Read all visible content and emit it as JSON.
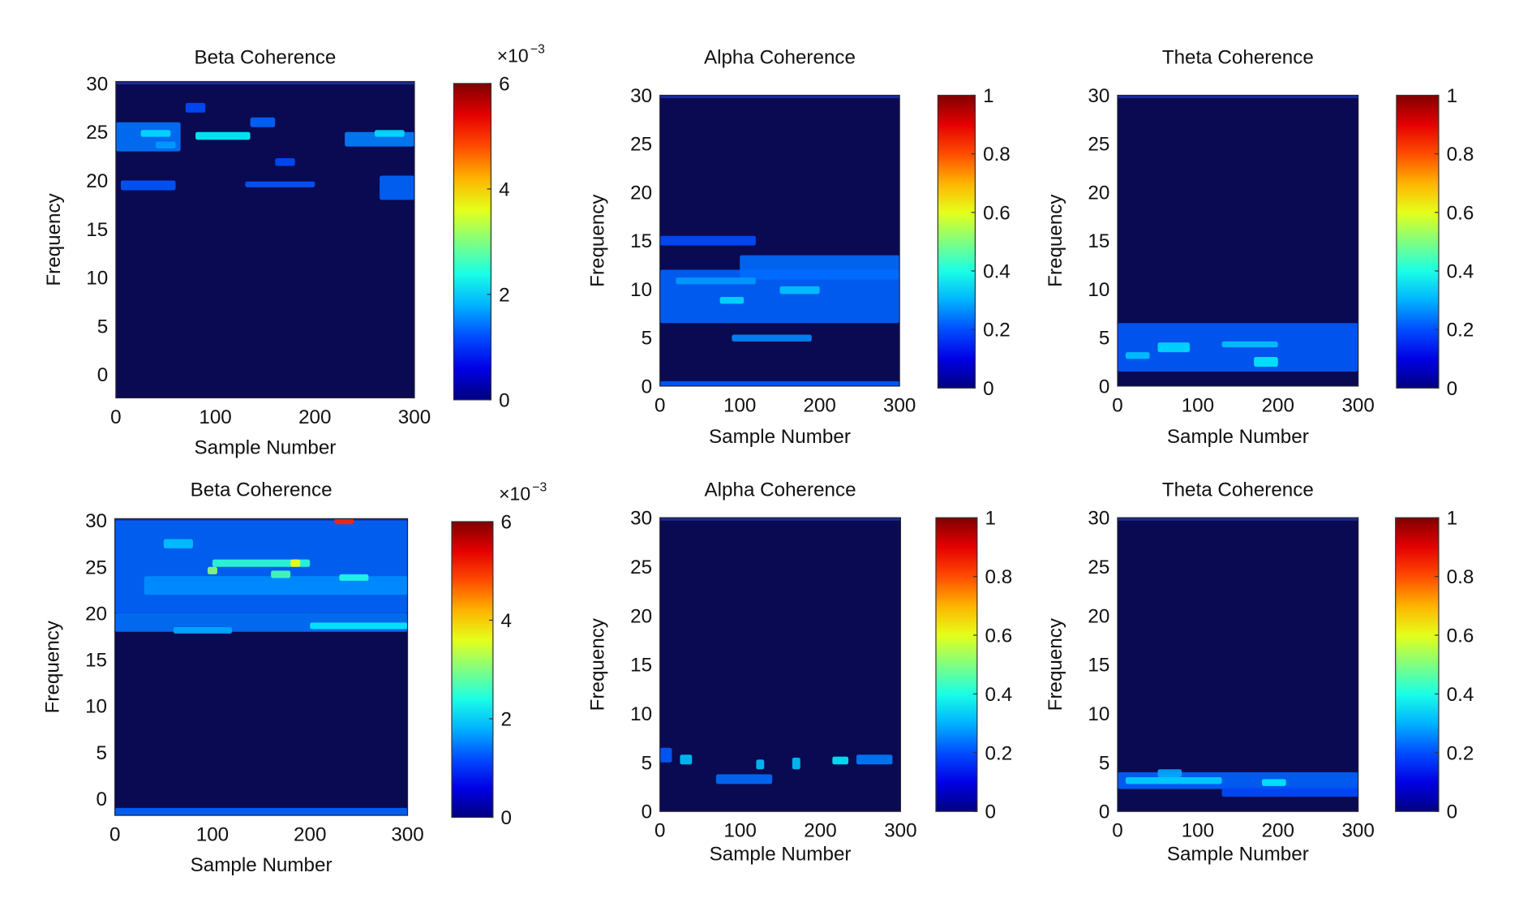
{
  "chart_data": [
    {
      "type": "heatmap",
      "title": "Beta Coherence",
      "xlabel": "Sample Number",
      "ylabel": "Frequency",
      "xlim": [
        0,
        300
      ],
      "ylim": [
        -2.4,
        30.2
      ],
      "xticks": [
        "0",
        "100",
        "200",
        "300"
      ],
      "yticks": [
        "0",
        "5",
        "10",
        "15",
        "20",
        "25",
        "30"
      ],
      "colorbar": {
        "range": [
          0,
          6
        ],
        "ticks": [
          "0",
          "2",
          "4",
          "6"
        ],
        "exponent": "×10",
        "exponent_power": "−3"
      },
      "background_value": 0.05,
      "hotspots": [
        {
          "x": [
            0,
            65
          ],
          "f": [
            23,
            26
          ],
          "v": 0.9
        },
        {
          "x": [
            25,
            55
          ],
          "f": [
            24.5,
            25.2
          ],
          "v": 1.7
        },
        {
          "x": [
            80,
            135
          ],
          "f": [
            24.2,
            25
          ],
          "v": 1.9
        },
        {
          "x": [
            40,
            60
          ],
          "f": [
            23.3,
            24
          ],
          "v": 1.2
        },
        {
          "x": [
            135,
            160
          ],
          "f": [
            25.5,
            26.5
          ],
          "v": 0.8
        },
        {
          "x": [
            230,
            300
          ],
          "f": [
            23.5,
            25
          ],
          "v": 1.0
        },
        {
          "x": [
            260,
            290
          ],
          "f": [
            24.5,
            25.2
          ],
          "v": 1.7
        },
        {
          "x": [
            5,
            60
          ],
          "f": [
            19,
            20
          ],
          "v": 0.7
        },
        {
          "x": [
            130,
            200
          ],
          "f": [
            19.3,
            19.9
          ],
          "v": 0.7
        },
        {
          "x": [
            265,
            300
          ],
          "f": [
            18,
            20.5
          ],
          "v": 0.8
        },
        {
          "x": [
            70,
            90
          ],
          "f": [
            27,
            28
          ],
          "v": 0.6
        },
        {
          "x": [
            160,
            180
          ],
          "f": [
            21.5,
            22.3
          ],
          "v": 0.6
        }
      ]
    },
    {
      "type": "heatmap",
      "title": "Alpha Coherence",
      "xlabel": "Sample Number",
      "ylabel": "Frequency",
      "xlim": [
        0,
        300
      ],
      "ylim": [
        0,
        30
      ],
      "xticks": [
        "0",
        "100",
        "200",
        "300"
      ],
      "yticks": [
        "0",
        "5",
        "10",
        "15",
        "20",
        "25",
        "30"
      ],
      "colorbar": {
        "range": [
          0,
          1
        ],
        "ticks": [
          "0",
          "0.2",
          "0.4",
          "0.6",
          "0.8",
          "1"
        ]
      },
      "background_value": 0.02,
      "hotspots": [
        {
          "x": [
            0,
            300
          ],
          "f": [
            6.5,
            12
          ],
          "v": 0.13
        },
        {
          "x": [
            100,
            300
          ],
          "f": [
            11,
            13.5
          ],
          "v": 0.14
        },
        {
          "x": [
            0,
            120
          ],
          "f": [
            14.5,
            15.5
          ],
          "v": 0.1
        },
        {
          "x": [
            20,
            120
          ],
          "f": [
            10.5,
            11.2
          ],
          "v": 0.2
        },
        {
          "x": [
            75,
            105
          ],
          "f": [
            8.5,
            9.2
          ],
          "v": 0.28
        },
        {
          "x": [
            150,
            200
          ],
          "f": [
            9.5,
            10.3
          ],
          "v": 0.25
        },
        {
          "x": [
            90,
            190
          ],
          "f": [
            4.6,
            5.3
          ],
          "v": 0.18
        },
        {
          "x": [
            0,
            300
          ],
          "f": [
            0,
            0.5
          ],
          "v": 0.12
        }
      ]
    },
    {
      "type": "heatmap",
      "title": "Theta Coherence",
      "xlabel": "Sample Number",
      "ylabel": "Frequency",
      "xlim": [
        0,
        300
      ],
      "ylim": [
        0,
        30
      ],
      "xticks": [
        "0",
        "100",
        "200",
        "300"
      ],
      "yticks": [
        "0",
        "5",
        "10",
        "15",
        "20",
        "25",
        "30"
      ],
      "colorbar": {
        "range": [
          0,
          1
        ],
        "ticks": [
          "0",
          "0.2",
          "0.4",
          "0.6",
          "0.8",
          "1"
        ]
      },
      "background_value": 0.02,
      "hotspots": [
        {
          "x": [
            0,
            300
          ],
          "f": [
            1.5,
            6.5
          ],
          "v": 0.12
        },
        {
          "x": [
            50,
            90
          ],
          "f": [
            3.5,
            4.5
          ],
          "v": 0.28
        },
        {
          "x": [
            130,
            200
          ],
          "f": [
            4,
            4.6
          ],
          "v": 0.25
        },
        {
          "x": [
            10,
            40
          ],
          "f": [
            2.8,
            3.5
          ],
          "v": 0.25
        },
        {
          "x": [
            170,
            200
          ],
          "f": [
            2,
            3
          ],
          "v": 0.3
        }
      ]
    },
    {
      "type": "heatmap",
      "title": "Beta Coherence",
      "xlabel": "Sample Number",
      "ylabel": "Frequency",
      "xlim": [
        0,
        300
      ],
      "ylim": [
        -1.8,
        30.2
      ],
      "xticks": [
        "0",
        "100",
        "200",
        "300"
      ],
      "yticks": [
        "0",
        "5",
        "10",
        "15",
        "20",
        "25",
        "30"
      ],
      "colorbar": {
        "range": [
          0,
          6
        ],
        "ticks": [
          "0",
          "2",
          "4",
          "6"
        ],
        "exponent": "×10",
        "exponent_power": "−3"
      },
      "background_value": 0.05,
      "hotspots": [
        {
          "x": [
            0,
            300
          ],
          "f": [
            20,
            30
          ],
          "v": 0.8
        },
        {
          "x": [
            30,
            300
          ],
          "f": [
            22,
            24
          ],
          "v": 1.1
        },
        {
          "x": [
            0,
            300
          ],
          "f": [
            18,
            20
          ],
          "v": 0.9
        },
        {
          "x": [
            100,
            200
          ],
          "f": [
            25,
            25.8
          ],
          "v": 2.3
        },
        {
          "x": [
            180,
            190
          ],
          "f": [
            25,
            25.8
          ],
          "v": 3.8
        },
        {
          "x": [
            95,
            105
          ],
          "f": [
            24.2,
            25
          ],
          "v": 3.0
        },
        {
          "x": [
            160,
            180
          ],
          "f": [
            23.8,
            24.6
          ],
          "v": 2.5
        },
        {
          "x": [
            230,
            260
          ],
          "f": [
            23.5,
            24.2
          ],
          "v": 2.2
        },
        {
          "x": [
            200,
            300
          ],
          "f": [
            18.3,
            19
          ],
          "v": 1.8
        },
        {
          "x": [
            50,
            80
          ],
          "f": [
            27,
            28
          ],
          "v": 1.5
        },
        {
          "x": [
            225,
            245
          ],
          "f": [
            29.6,
            30.2
          ],
          "v": 5.5
        },
        {
          "x": [
            60,
            120
          ],
          "f": [
            17.8,
            18.5
          ],
          "v": 1.3
        },
        {
          "x": [
            0,
            300
          ],
          "f": [
            -1.8,
            -1
          ],
          "v": 0.8
        }
      ]
    },
    {
      "type": "heatmap",
      "title": "Alpha Coherence",
      "xlabel": "Sample Number",
      "ylabel": "Frequency",
      "xlim": [
        0,
        300
      ],
      "ylim": [
        0,
        30
      ],
      "xticks": [
        "0",
        "100",
        "200",
        "300"
      ],
      "yticks": [
        "0",
        "5",
        "10",
        "15",
        "20",
        "25",
        "30"
      ],
      "colorbar": {
        "range": [
          0,
          1
        ],
        "ticks": [
          "0",
          "0.2",
          "0.4",
          "0.6",
          "0.8",
          "1"
        ]
      },
      "background_value": 0.02,
      "hotspots": [
        {
          "x": [
            70,
            140
          ],
          "f": [
            2.8,
            3.8
          ],
          "v": 0.14
        },
        {
          "x": [
            245,
            290
          ],
          "f": [
            4.8,
            5.8
          ],
          "v": 0.16
        },
        {
          "x": [
            215,
            235
          ],
          "f": [
            4.8,
            5.6
          ],
          "v": 0.3
        },
        {
          "x": [
            25,
            40
          ],
          "f": [
            4.8,
            5.8
          ],
          "v": 0.25
        },
        {
          "x": [
            120,
            130
          ],
          "f": [
            4.3,
            5.3
          ],
          "v": 0.25
        },
        {
          "x": [
            165,
            175
          ],
          "f": [
            4.3,
            5.5
          ],
          "v": 0.25
        },
        {
          "x": [
            0,
            15
          ],
          "f": [
            5,
            6.5
          ],
          "v": 0.12
        }
      ]
    },
    {
      "type": "heatmap",
      "title": "Theta Coherence",
      "xlabel": "Sample Number",
      "ylabel": "Frequency",
      "xlim": [
        0,
        300
      ],
      "ylim": [
        0,
        30
      ],
      "xticks": [
        "0",
        "100",
        "200",
        "300"
      ],
      "yticks": [
        "0",
        "5",
        "10",
        "15",
        "20",
        "25",
        "30"
      ],
      "colorbar": {
        "range": [
          0,
          1
        ],
        "ticks": [
          "0",
          "0.2",
          "0.4",
          "0.6",
          "0.8",
          "1"
        ]
      },
      "background_value": 0.02,
      "hotspots": [
        {
          "x": [
            0,
            300
          ],
          "f": [
            2.3,
            4
          ],
          "v": 0.13
        },
        {
          "x": [
            10,
            130
          ],
          "f": [
            2.8,
            3.5
          ],
          "v": 0.27
        },
        {
          "x": [
            180,
            210
          ],
          "f": [
            2.6,
            3.3
          ],
          "v": 0.3
        },
        {
          "x": [
            50,
            80
          ],
          "f": [
            3.5,
            4.3
          ],
          "v": 0.22
        },
        {
          "x": [
            130,
            300
          ],
          "f": [
            1.5,
            2.5
          ],
          "v": 0.1
        }
      ]
    }
  ]
}
